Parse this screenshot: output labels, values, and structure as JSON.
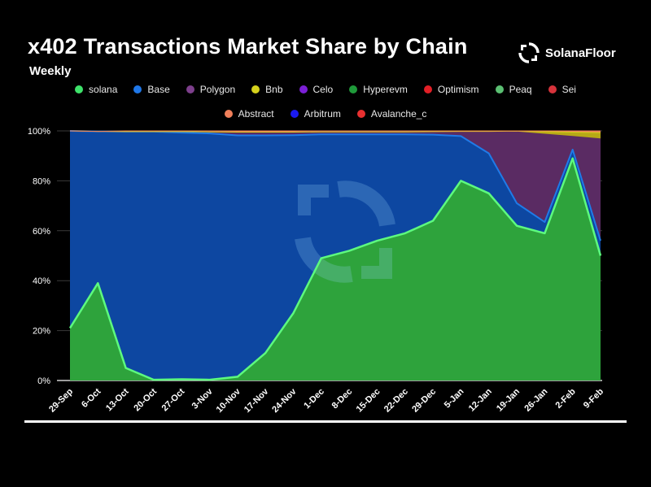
{
  "header": {
    "title": "x402 Transactions Market Share by Chain",
    "subtitle": "Weekly",
    "brand": "SolanaFloor",
    "brand_icon": "solanafloor-logo-icon"
  },
  "legend": {
    "row1": [
      {
        "name": "solana",
        "color": "#3ee26a"
      },
      {
        "name": "Base",
        "color": "#1f77e8"
      },
      {
        "name": "Polygon",
        "color": "#7d3f8c"
      },
      {
        "name": "Bnb",
        "color": "#d6d21c"
      },
      {
        "name": "Celo",
        "color": "#7b1fd6"
      },
      {
        "name": "Hyperevm",
        "color": "#1f9a3a"
      },
      {
        "name": "Optimism",
        "color": "#e21f26"
      },
      {
        "name": "Peaq",
        "color": "#5bbf72"
      },
      {
        "name": "Sei",
        "color": "#d6333b"
      }
    ],
    "row2": [
      {
        "name": "Abstract",
        "color": "#f07f5a"
      },
      {
        "name": "Arbitrum",
        "color": "#1a1af0"
      },
      {
        "name": "Avalanche_c",
        "color": "#e83030"
      }
    ]
  },
  "chart_data": {
    "type": "area",
    "stacked": true,
    "normalized_percent": true,
    "title": "x402 Transactions Market Share by Chain",
    "subtitle": "Weekly",
    "ylim": [
      0,
      100
    ],
    "y_ticks": [
      "0%",
      "20%",
      "40%",
      "60%",
      "80%",
      "100%"
    ],
    "grid": true,
    "legend_position": "top",
    "categories": [
      "29-Sep",
      "6-Oct",
      "13-Oct",
      "20-Oct",
      "27-Oct",
      "3-Nov",
      "10-Nov",
      "17-Nov",
      "24-Nov",
      "1-Dec",
      "8-Dec",
      "15-Dec",
      "22-Dec",
      "29-Dec",
      "5-Jan",
      "12-Jan",
      "19-Jan",
      "26-Jan",
      "2-Feb",
      "9-Feb"
    ],
    "series": [
      {
        "name": "solana",
        "color": "#2ea33c",
        "line": "#5dfa7e",
        "values": [
          21,
          39,
          5,
          0.3,
          0.5,
          0.3,
          1.5,
          11,
          27,
          49,
          52,
          56,
          59,
          64,
          80,
          75,
          62,
          59,
          89,
          50
        ]
      },
      {
        "name": "Base",
        "color": "#0d47a1",
        "line": "#1f7be8",
        "values": [
          79,
          60.8,
          94.7,
          99.4,
          98.8,
          98.7,
          96.7,
          87.2,
          71.3,
          49.6,
          46.6,
          42.6,
          39.6,
          34.5,
          17.9,
          16,
          9,
          4.5,
          3.5,
          6
        ]
      },
      {
        "name": "Polygon",
        "color": "#5a2b63",
        "line": "#5a2b63",
        "values": [
          0,
          0,
          0,
          0,
          0.4,
          0.6,
          1.3,
          1.3,
          1.2,
          1,
          1,
          1,
          1,
          1.2,
          1.9,
          8.8,
          28.6,
          35.2,
          5.3,
          40.8
        ]
      },
      {
        "name": "Bnb",
        "color": "#b7a916",
        "line": "#d6d21c",
        "values": [
          0,
          0,
          0,
          0,
          0,
          0,
          0,
          0,
          0,
          0,
          0,
          0,
          0,
          0,
          0,
          0,
          0.3,
          1,
          1.7,
          2.5
        ]
      },
      {
        "name": "Abstract",
        "color": "#f07f5a",
        "line": "#f07f5a",
        "values": [
          0,
          0,
          0.3,
          0.3,
          0.3,
          0.4,
          0.5,
          0.5,
          0.5,
          0.4,
          0.4,
          0.4,
          0.4,
          0.3,
          0.2,
          0.2,
          0.1,
          0.3,
          0.5,
          0.7
        ]
      }
    ]
  }
}
